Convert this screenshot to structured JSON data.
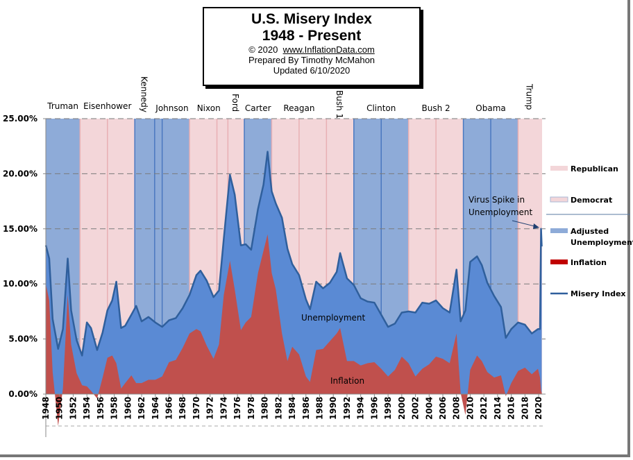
{
  "title": {
    "line1": "U.S. Misery Index",
    "line2": "1948 - Present",
    "copyright_prefix": "© 2020",
    "website": "www.InflationData.com",
    "prepared_by": "Prepared  By Timothy McMahon",
    "updated": "Updated  6/10/2020"
  },
  "chart_data": {
    "type": "area",
    "title": "U.S. Misery Index 1948 - Present",
    "ylim": [
      -3,
      25
    ],
    "xlim": [
      1948,
      2020.5
    ],
    "y_ticks": [
      "0.00%",
      "5.00%",
      "10.00%",
      "15.00%",
      "20.00%",
      "25.00%"
    ],
    "y_tick_values": [
      0,
      5,
      10,
      15,
      20,
      25
    ],
    "x_ticks": [
      "1948",
      "1950",
      "1952",
      "1954",
      "1956",
      "1958",
      "1960",
      "1962",
      "1964",
      "1966",
      "1968",
      "1970",
      "1972",
      "1974",
      "1976",
      "1978",
      "1980",
      "1982",
      "1984",
      "1986",
      "1988",
      "1990",
      "1992",
      "1994",
      "1996",
      "1998",
      "2000",
      "2002",
      "2004",
      "2006",
      "2008",
      "2010",
      "2012",
      "2014",
      "2016",
      "2018",
      "2020"
    ],
    "grid": "horizontal dashed",
    "legend_position": "right",
    "legend": [
      {
        "label": "Republican",
        "kind": "republican"
      },
      {
        "label": "Democrat",
        "kind": "democrat"
      },
      {
        "label": "Adjusted Unemployment",
        "kind": "unemployment"
      },
      {
        "label": "Inflation",
        "kind": "inflation"
      },
      {
        "label": "Misery Index",
        "kind": "misery"
      }
    ],
    "colors": {
      "republican": "#f3d6d9",
      "democrat": "#8eabd8",
      "unemployment": "#5a8ad4",
      "inflation": "#c0504d",
      "misery": "#2f5f9c",
      "term_line_rep": "#e8b0b4",
      "term_line_dem": "#4a78c0"
    },
    "presidents": [
      {
        "name": "Truman",
        "start": 1948,
        "end": 1953,
        "party": "democrat"
      },
      {
        "name": "Eisenhower",
        "start": 1953,
        "end": 1961,
        "party": "republican"
      },
      {
        "name": "Kennedy",
        "start": 1961,
        "end": 1963.9,
        "party": "democrat",
        "vertical": true
      },
      {
        "name": "Johnson",
        "start": 1963.9,
        "end": 1969,
        "party": "democrat"
      },
      {
        "name": "Nixon",
        "start": 1969,
        "end": 1974.6,
        "party": "republican"
      },
      {
        "name": "Ford",
        "start": 1974.6,
        "end": 1977,
        "party": "republican",
        "vertical": true
      },
      {
        "name": "Carter",
        "start": 1977,
        "end": 1981,
        "party": "democrat"
      },
      {
        "name": "Reagan",
        "start": 1981,
        "end": 1989,
        "party": "republican"
      },
      {
        "name": "Bush 1",
        "start": 1989,
        "end": 1993,
        "party": "republican",
        "vertical": true
      },
      {
        "name": "Clinton",
        "start": 1993,
        "end": 2001,
        "party": "democrat"
      },
      {
        "name": "Bush 2",
        "start": 2001,
        "end": 2009,
        "party": "republican"
      },
      {
        "name": "Obama",
        "start": 2009,
        "end": 2017,
        "party": "democrat"
      },
      {
        "name": "Trump",
        "start": 2017,
        "end": 2020.5,
        "party": "republican",
        "vertical": true
      }
    ],
    "term_boundaries": [
      1957,
      1965,
      1973,
      1985,
      1997,
      2005,
      2013
    ],
    "x": [
      1948.0,
      1948.5,
      1949.0,
      1949.8,
      1950.5,
      1951.2,
      1951.7,
      1952.5,
      1953.3,
      1954.0,
      1954.6,
      1955.5,
      1956.3,
      1957.0,
      1957.7,
      1958.3,
      1959.0,
      1959.6,
      1960.5,
      1961.2,
      1962.0,
      1963.0,
      1964.0,
      1965.0,
      1966.0,
      1967.0,
      1968.0,
      1969.0,
      1970.0,
      1970.6,
      1971.5,
      1972.5,
      1973.3,
      1974.0,
      1974.9,
      1975.6,
      1976.5,
      1977.2,
      1978.0,
      1979.0,
      1979.8,
      1980.4,
      1981.0,
      1981.6,
      1982.5,
      1983.3,
      1984.0,
      1985.0,
      1986.0,
      1986.6,
      1987.5,
      1988.5,
      1989.5,
      1990.5,
      1991.0,
      1992.0,
      1993.0,
      1994.0,
      1995.0,
      1996.0,
      1997.0,
      1998.0,
      1999.0,
      2000.0,
      2001.0,
      2002.0,
      2003.0,
      2004.0,
      2005.0,
      2006.0,
      2007.0,
      2008.0,
      2008.6,
      2009.3,
      2010.0,
      2011.0,
      2011.7,
      2012.5,
      2013.5,
      2014.5,
      2015.2,
      2016.0,
      2017.0,
      2018.0,
      2019.0,
      2019.9,
      2020.2,
      2020.35,
      2020.45
    ],
    "series": [
      {
        "name": "Inflation",
        "values": [
          10.0,
          8.5,
          2.0,
          -2.9,
          0.5,
          9.0,
          4.5,
          1.9,
          0.8,
          0.7,
          0.3,
          -0.4,
          1.5,
          3.3,
          3.5,
          2.8,
          0.5,
          1.0,
          1.7,
          1.0,
          1.0,
          1.3,
          1.3,
          1.6,
          2.9,
          3.1,
          4.2,
          5.5,
          5.9,
          5.7,
          4.4,
          3.2,
          4.5,
          9.0,
          12.1,
          9.5,
          5.8,
          6.5,
          7.0,
          11.0,
          13.0,
          14.5,
          11.0,
          9.5,
          5.5,
          3.0,
          4.3,
          3.6,
          1.6,
          1.1,
          4.0,
          4.1,
          4.8,
          5.5,
          6.0,
          3.0,
          3.0,
          2.6,
          2.8,
          2.9,
          2.3,
          1.6,
          2.2,
          3.4,
          2.8,
          1.6,
          2.3,
          2.7,
          3.4,
          3.2,
          2.8,
          5.5,
          0.1,
          -1.9,
          2.2,
          3.5,
          3.0,
          2.0,
          1.5,
          1.7,
          -0.2,
          1.0,
          2.1,
          2.4,
          1.8,
          2.3,
          1.5,
          0.3,
          0.1
        ]
      },
      {
        "name": "Unemployment",
        "values": [
          3.5,
          3.8,
          4.8,
          7.0,
          5.4,
          3.3,
          3.1,
          3.0,
          2.7,
          5.8,
          5.7,
          4.4,
          4.1,
          4.3,
          5.0,
          7.4,
          5.5,
          5.2,
          5.5,
          7.0,
          5.6,
          5.7,
          5.2,
          4.5,
          3.8,
          3.8,
          3.6,
          3.5,
          4.9,
          5.5,
          5.9,
          5.6,
          4.9,
          5.1,
          7.8,
          8.6,
          7.7,
          7.1,
          6.1,
          5.8,
          6.0,
          7.5,
          7.4,
          7.8,
          10.5,
          10.2,
          7.5,
          7.2,
          7.0,
          6.6,
          6.2,
          5.5,
          5.3,
          5.6,
          6.8,
          7.5,
          6.9,
          6.1,
          5.6,
          5.4,
          4.9,
          4.5,
          4.2,
          4.0,
          4.7,
          5.8,
          6.0,
          5.5,
          5.1,
          4.6,
          4.6,
          5.8,
          6.5,
          9.5,
          9.8,
          9.0,
          8.7,
          8.1,
          7.4,
          6.2,
          5.3,
          4.9,
          4.4,
          3.9,
          3.7,
          3.6,
          4.4,
          14.7,
          13.3
        ]
      }
    ],
    "annotations": [
      "Unemployment",
      "Inflation",
      "Virus Spike in Unemployment"
    ]
  },
  "annotation_text": {
    "unemployment": "Unemployment",
    "inflation": "Inflation",
    "virus_line1": "Virus Spike in",
    "virus_line2": "Unemployment"
  }
}
